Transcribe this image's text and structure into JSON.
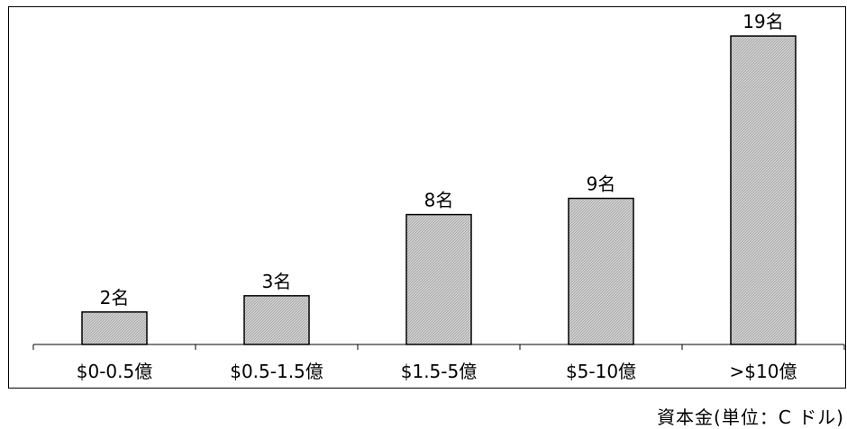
{
  "chart_data": {
    "type": "bar",
    "categories": [
      "$0-0.5億",
      "$0.5-1.5億",
      "$1.5-5億",
      "$5-10億",
      ">$10億"
    ],
    "values": [
      2,
      3,
      8,
      9,
      19
    ],
    "data_labels": [
      "2名",
      "3名",
      "8名",
      "9名",
      "19名"
    ],
    "ylim": [
      0,
      20
    ],
    "grid": false,
    "bar_fill": "#c8c8c8",
    "bar_stroke": "#000000"
  },
  "unit_label": "資本金(単位：C ドル)"
}
